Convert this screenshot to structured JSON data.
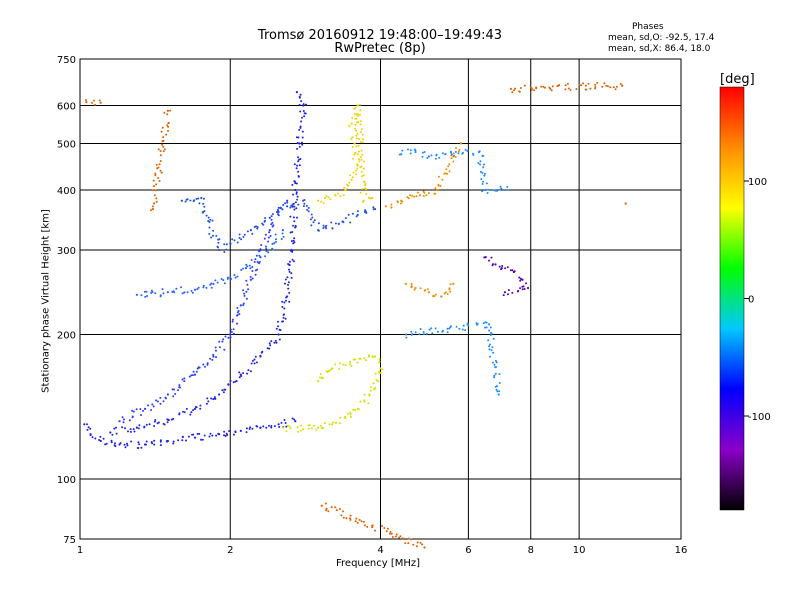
{
  "title": "Tromsø 20160912 19:48:00–19:49:43",
  "subtitle": "RwPretec (8p)",
  "stats": {
    "heading": "Phases",
    "o_mode": "mean, sd,O: -92.5, 17.4",
    "x_mode": "mean, sd,X: 86.4, 18.0"
  },
  "chart_data": {
    "type": "scatter",
    "xlabel": "Frequency [MHz]",
    "ylabel": "Stationary phase Virtual Height [km]",
    "x_scale": "log",
    "y_scale": "log",
    "xlim": [
      1,
      16
    ],
    "ylim": [
      75,
      750
    ],
    "x_ticks": [
      1,
      2,
      4,
      6,
      8,
      10,
      16
    ],
    "x_tick_labels": [
      "1",
      "2",
      "4",
      "6",
      "8",
      "10",
      "16"
    ],
    "y_ticks": [
      75,
      100,
      200,
      300,
      400,
      500,
      600,
      750
    ],
    "y_tick_labels": [
      "75",
      "100",
      "200",
      "300",
      "400",
      "500",
      "600",
      "750"
    ],
    "grid": true,
    "colorbar": {
      "label": "[deg]",
      "range": [
        -180,
        180
      ],
      "ticks": [
        100,
        0,
        -100
      ],
      "tick_labels": [
        "100",
        "0",
        "-100"
      ],
      "colormap": [
        "#000000",
        "#8a00c8",
        "#0000ff",
        "#00c8ff",
        "#00ff00",
        "#ffff00",
        "#ff8c00",
        "#ff0000"
      ]
    },
    "series": [
      {
        "phase_deg": -100,
        "color": "#1e22e6",
        "points": [
          [
            1.02,
            130
          ],
          [
            1.05,
            124
          ],
          [
            1.1,
            120
          ],
          [
            1.2,
            118
          ],
          [
            1.35,
            118
          ],
          [
            1.5,
            120
          ],
          [
            1.7,
            122
          ],
          [
            1.9,
            124
          ],
          [
            2.1,
            126
          ],
          [
            2.3,
            128
          ],
          [
            2.5,
            130
          ],
          [
            2.7,
            132
          ]
        ]
      },
      {
        "phase_deg": -100,
        "color": "#1e22e6",
        "points": [
          [
            1.15,
            125
          ],
          [
            1.3,
            128
          ],
          [
            1.5,
            133
          ],
          [
            1.7,
            140
          ],
          [
            1.9,
            150
          ],
          [
            2.1,
            165
          ],
          [
            2.3,
            180
          ],
          [
            2.5,
            200
          ],
          [
            2.6,
            240
          ],
          [
            2.65,
            300
          ],
          [
            2.7,
            400
          ],
          [
            2.75,
            500
          ],
          [
            2.8,
            600
          ],
          [
            2.72,
            640
          ]
        ]
      },
      {
        "phase_deg": -105,
        "color": "#2a3cff",
        "points": [
          [
            1.2,
            132
          ],
          [
            1.35,
            140
          ],
          [
            1.5,
            150
          ],
          [
            1.7,
            165
          ],
          [
            1.85,
            180
          ],
          [
            2.0,
            200
          ],
          [
            2.1,
            230
          ],
          [
            2.2,
            260
          ],
          [
            2.3,
            300
          ],
          [
            2.4,
            330
          ],
          [
            2.5,
            360
          ],
          [
            2.6,
            380
          ]
        ]
      },
      {
        "phase_deg": -95,
        "color": "#2563ff",
        "points": [
          [
            1.3,
            242
          ],
          [
            1.5,
            245
          ],
          [
            1.7,
            248
          ],
          [
            1.85,
            255
          ],
          [
            2.0,
            262
          ],
          [
            2.15,
            275
          ],
          [
            2.3,
            290
          ],
          [
            2.45,
            310
          ],
          [
            2.55,
            330
          ]
        ]
      },
      {
        "phase_deg": -100,
        "color": "#1f4fe0",
        "points": [
          [
            1.6,
            380
          ],
          [
            1.75,
            385
          ],
          [
            1.9,
            300
          ],
          [
            2.0,
            310
          ],
          [
            2.2,
            330
          ],
          [
            2.4,
            350
          ],
          [
            2.6,
            370
          ],
          [
            2.8,
            380
          ],
          [
            3.0,
            330
          ],
          [
            3.3,
            340
          ],
          [
            3.6,
            355
          ],
          [
            3.9,
            365
          ]
        ]
      },
      {
        "phase_deg": 80,
        "color": "#d8e000",
        "points": [
          [
            2.55,
            128
          ],
          [
            2.8,
            127
          ],
          [
            3.0,
            128
          ],
          [
            3.2,
            130
          ],
          [
            3.4,
            134
          ],
          [
            3.6,
            140
          ],
          [
            3.8,
            150
          ],
          [
            3.95,
            160
          ],
          [
            4.0,
            170
          ],
          [
            3.9,
            180
          ],
          [
            3.2,
            170
          ],
          [
            3.0,
            160
          ]
        ]
      },
      {
        "phase_deg": 100,
        "color": "#f0d200",
        "points": [
          [
            3.0,
            380
          ],
          [
            3.1,
            385
          ],
          [
            3.25,
            390
          ],
          [
            3.4,
            400
          ],
          [
            3.5,
            420
          ],
          [
            3.6,
            450
          ],
          [
            3.55,
            500
          ],
          [
            3.5,
            550
          ],
          [
            3.6,
            600
          ],
          [
            3.7,
            380
          ],
          [
            3.85,
            385
          ]
        ]
      },
      {
        "phase_deg": 130,
        "color": "#f08c00",
        "points": [
          [
            4.1,
            370
          ],
          [
            4.4,
            380
          ],
          [
            4.8,
            390
          ],
          [
            5.2,
            400
          ],
          [
            5.6,
            470
          ],
          [
            5.8,
            500
          ],
          [
            4.5,
            255
          ],
          [
            4.7,
            250
          ],
          [
            5.0,
            245
          ],
          [
            5.3,
            240
          ],
          [
            5.6,
            255
          ]
        ]
      },
      {
        "phase_deg": -60,
        "color": "#1d8cff",
        "points": [
          [
            4.4,
            475
          ],
          [
            4.7,
            480
          ],
          [
            5.0,
            470
          ],
          [
            6.3,
            480
          ],
          [
            6.5,
            400
          ],
          [
            7.2,
            400
          ],
          [
            4.5,
            200
          ],
          [
            6.6,
            210
          ],
          [
            6.9,
            150
          ]
        ]
      },
      {
        "phase_deg": -130,
        "color": "#5a00b4",
        "points": [
          [
            6.5,
            290
          ],
          [
            6.8,
            280
          ],
          [
            7.0,
            275
          ],
          [
            7.4,
            270
          ],
          [
            7.7,
            260
          ],
          [
            7.9,
            250
          ],
          [
            7.1,
            245
          ]
        ]
      },
      {
        "phase_deg": 140,
        "color": "#e06000",
        "points": [
          [
            1.03,
            610
          ],
          [
            1.1,
            608
          ],
          [
            3.05,
            88
          ],
          [
            4.9,
            72
          ],
          [
            7.3,
            650
          ],
          [
            12.2,
            660
          ],
          [
            1.5,
            585
          ],
          [
            1.4,
            365
          ],
          [
            12.4,
            375
          ]
        ]
      }
    ]
  }
}
